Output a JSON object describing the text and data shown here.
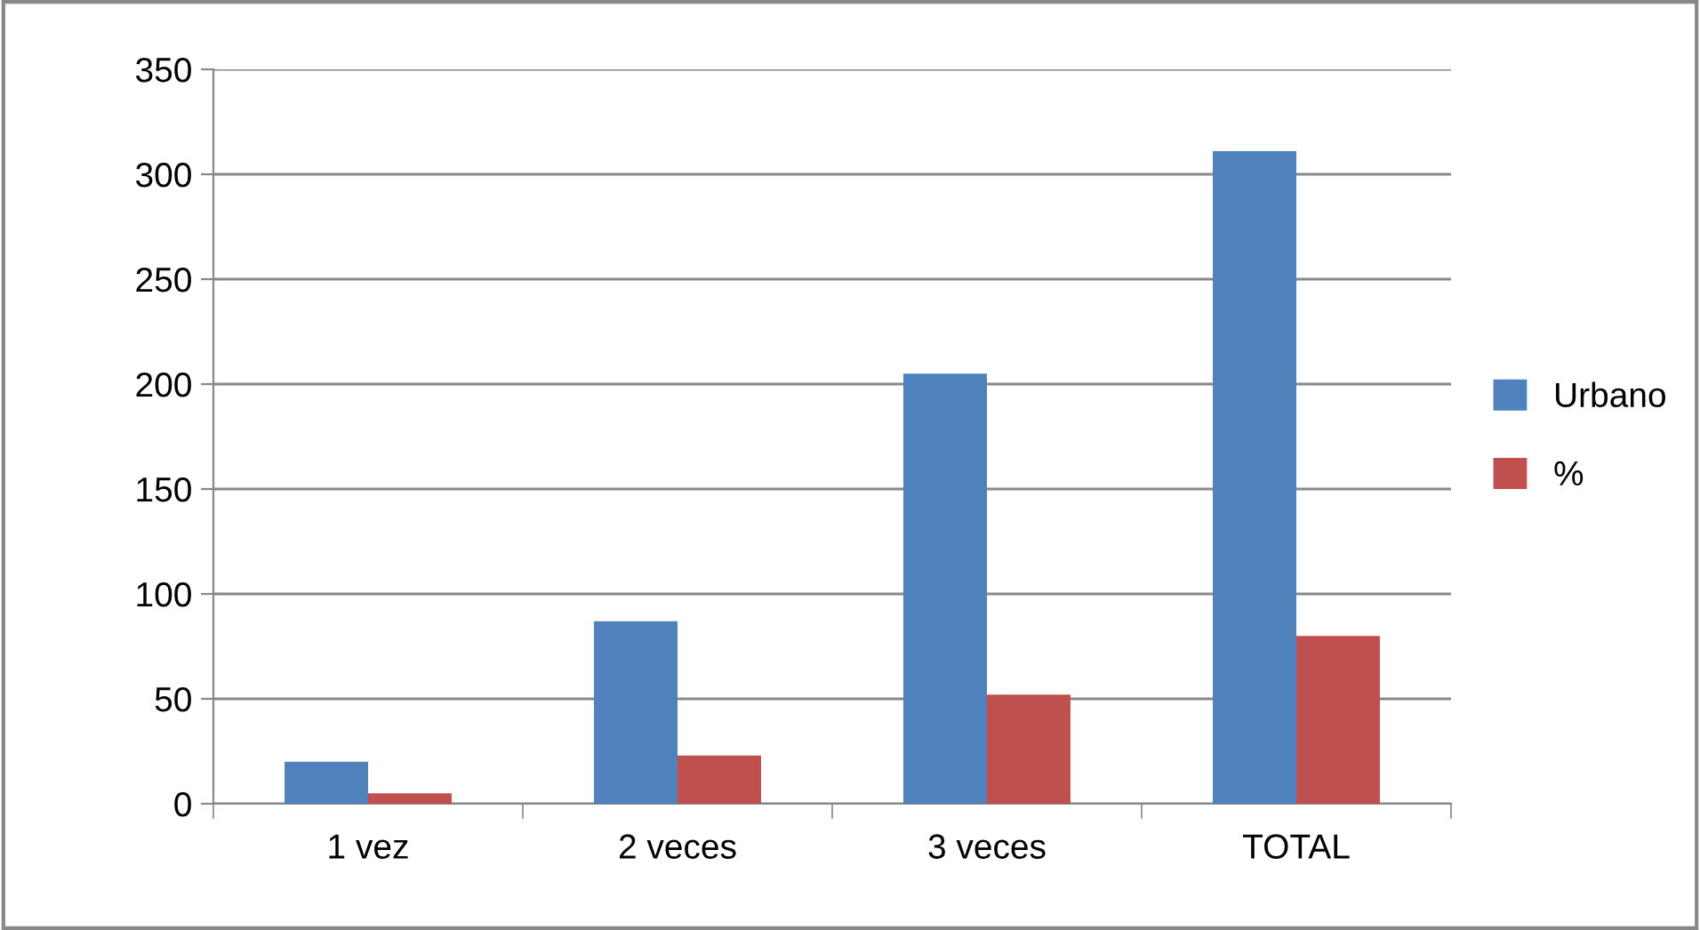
{
  "chart_data": {
    "type": "bar",
    "categories": [
      "1 vez",
      "2 veces",
      "3 veces",
      "TOTAL"
    ],
    "series": [
      {
        "name": "Urbano",
        "color": "#4f81bd",
        "values": [
          20,
          87,
          205,
          311
        ]
      },
      {
        "name": "%",
        "color": "#c0504d",
        "values": [
          5,
          23,
          52,
          80
        ]
      }
    ],
    "ylim": [
      0,
      350
    ],
    "yticks": [
      0,
      50,
      100,
      150,
      200,
      250,
      300,
      350
    ],
    "grid": "y",
    "legend": "right"
  }
}
